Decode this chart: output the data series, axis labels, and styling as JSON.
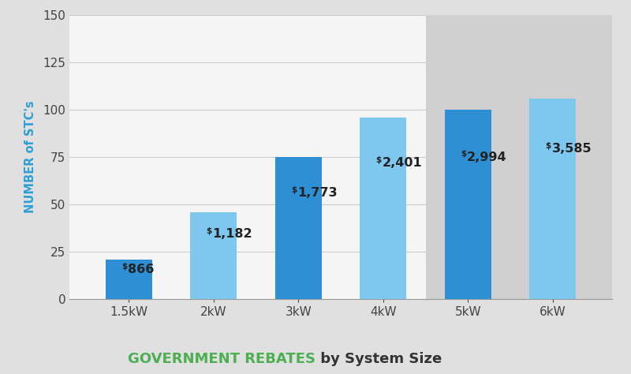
{
  "categories": [
    "1.5kW",
    "2kW",
    "3kW",
    "4kW",
    "5kW",
    "6kW"
  ],
  "values": [
    21,
    46,
    75,
    96,
    100,
    106
  ],
  "labels": [
    "$866",
    "$1,182",
    "$1,773",
    "$2,401",
    "$2,994",
    "$3,585"
  ],
  "bar_colors": [
    "#2e8fd4",
    "#7ec8f0",
    "#2e8fd4",
    "#7ec8f0",
    "#2e8fd4",
    "#7ec8f0"
  ],
  "fig_bg_color": "#e0e0e0",
  "plot_bg_white": "#f5f5f5",
  "plot_bg_gray": "#d0d0d0",
  "ylabel": "NUMBER of STC's",
  "ylabel_color": "#2e9fd6",
  "title_green": "GOVERNMENT REBATES",
  "title_black": " by System Size",
  "title_green_color": "#4caf50",
  "title_black_color": "#333333",
  "ylim": [
    0,
    150
  ],
  "yticks": [
    0,
    25,
    50,
    75,
    100,
    125,
    150
  ],
  "grid_color": "#cccccc",
  "tick_label_color": "#444444",
  "gray_split_bar": 4,
  "label_color": "#222222"
}
